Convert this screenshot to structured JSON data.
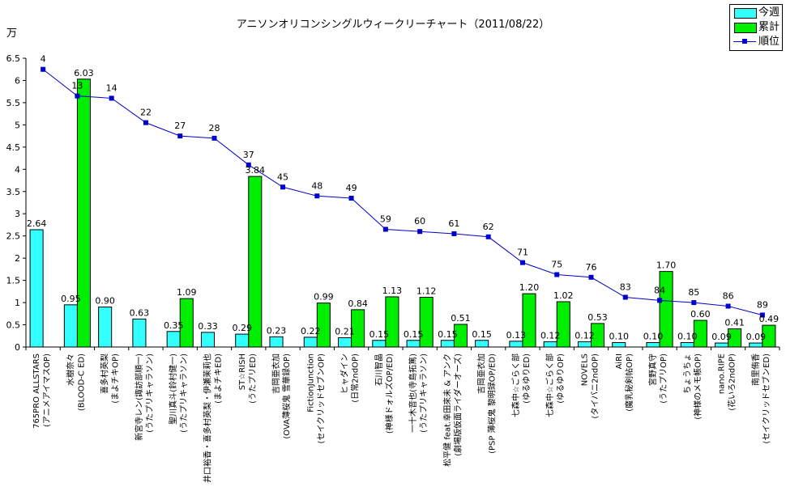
{
  "chart_data": {
    "type": "bar",
    "title": "アニソンオリコンシングルウィークリーチャート（2011/08/22）",
    "ylabel": "万",
    "ylim": [
      0,
      6.5
    ],
    "yticks": [
      "0",
      "0.5",
      "1",
      "1.5",
      "2",
      "2.5",
      "3",
      "3.5",
      "4",
      "4.5",
      "5",
      "5.5",
      "6",
      "6.5"
    ],
    "legend_position": "top-right",
    "grid": false,
    "categories": [
      [
        "765PRO ALLSTARS",
        "(アニメアイマスOP)"
      ],
      [
        "水樹奈々",
        "(BLOOD-C ED)"
      ],
      [
        "喜多村英梨",
        "(まよチキOP)"
      ],
      [
        "新宮寺レン(諏訪部順一)",
        "(うたプリキャラソン)"
      ],
      [
        "聖川真斗(鈴村健一)",
        "(うたプリキャラソン)"
      ],
      [
        "井口裕香・喜多村英梨・伊瀬茉莉也",
        "(まよチキED)"
      ],
      [
        "ST☆RISH",
        "(うたプリED)"
      ],
      [
        "吉岡亜衣加",
        "(OVA薄桜鬼 雪華録OP)"
      ],
      [
        "FictionJunction",
        "(セイクリッドセブンOP)"
      ],
      [
        "ヒャダイン",
        "(日常2ndOP)"
      ],
      [
        "石川智晶",
        "(神様ドォルズOP/ED)"
      ],
      [
        "一十木音也(寺島拓篤)",
        "(うたプリキャラソン)"
      ],
      [
        "松平健 feat.幸田來未 & アンク",
        "(劇場版仮面ライダーオーズ)"
      ],
      [
        "吉岡亜衣加",
        "(PSP 薄桜鬼 黎明録OP/ED)"
      ],
      [
        "七森中☆ごらく部",
        "(ゆるゆりED)"
      ],
      [
        "七森中☆ごらく部",
        "(ゆるゆりOP)"
      ],
      [
        "NOVELS",
        "(タイバニ2ndOP)"
      ],
      [
        "AiRI",
        "(魔乳秘剣帖OP)"
      ],
      [
        "宮野真守",
        "(うたプリOP)"
      ],
      [
        "ちょうちょ",
        "(神様のメモ帳OP)"
      ],
      [
        "nano.RIPE",
        "(花いろ2ndOP)"
      ],
      [
        "南里侑香",
        "(セイクリッドセブンED)"
      ]
    ],
    "series": [
      {
        "name": "今週",
        "type": "bar",
        "color": "#33ffff",
        "values": [
          2.64,
          0.95,
          0.9,
          0.63,
          0.35,
          0.33,
          0.29,
          0.23,
          0.22,
          0.21,
          0.15,
          0.15,
          0.15,
          0.15,
          0.13,
          0.12,
          0.12,
          0.1,
          0.1,
          0.1,
          0.09,
          0.09
        ],
        "labels": [
          "2.64",
          "0.95",
          "0.90",
          "0.63",
          "0.35",
          "0.33",
          "0.29",
          "0.23",
          "0.22",
          "0.21",
          "0.15",
          "0.15",
          "0.15",
          "0.15",
          "0.13",
          "0.12",
          "0.12",
          "0.10",
          "0.10",
          "0.10",
          "0.09",
          "0.09"
        ]
      },
      {
        "name": "累計",
        "type": "bar",
        "color": "#00ee00",
        "values": [
          null,
          6.03,
          null,
          null,
          1.09,
          null,
          3.84,
          null,
          0.99,
          0.84,
          1.13,
          1.12,
          0.51,
          null,
          1.2,
          1.02,
          0.53,
          null,
          1.7,
          0.6,
          0.41,
          0.49
        ],
        "labels": [
          "",
          "6.03",
          "",
          "",
          "1.09",
          "",
          "3.84",
          "",
          "0.99",
          "0.84",
          "1.13",
          "1.12",
          "0.51",
          "",
          "1.20",
          "1.02",
          "0.53",
          "",
          "1.70",
          "0.60",
          "0.41",
          "0.49"
        ]
      },
      {
        "name": "順位",
        "type": "line",
        "color": "#0000cc",
        "values": [
          4,
          13,
          14,
          22,
          27,
          28,
          37,
          45,
          48,
          49,
          59,
          60,
          61,
          62,
          71,
          75,
          76,
          83,
          84,
          85,
          86,
          89
        ],
        "plotted_on_value_scale": [
          6.25,
          5.65,
          5.6,
          5.05,
          4.75,
          4.7,
          4.1,
          3.6,
          3.4,
          3.35,
          2.65,
          2.6,
          2.55,
          2.48,
          1.9,
          1.63,
          1.57,
          1.12,
          1.05,
          1.0,
          0.92,
          0.72
        ],
        "labels": [
          "4",
          "13",
          "14",
          "22",
          "27",
          "28",
          "37",
          "45",
          "48",
          "49",
          "59",
          "60",
          "61",
          "62",
          "71",
          "75",
          "76",
          "83",
          "84",
          "85",
          "86",
          "89"
        ]
      }
    ]
  }
}
